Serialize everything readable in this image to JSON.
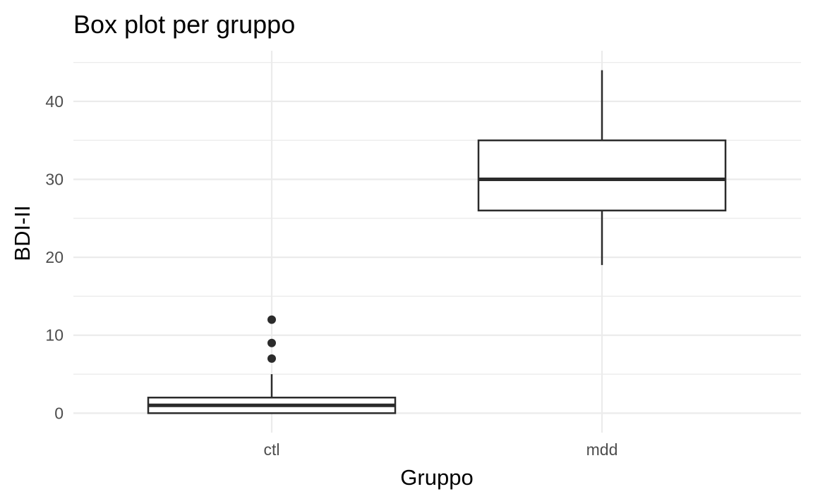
{
  "chart_data": {
    "type": "box",
    "title": "Box plot per gruppo",
    "xlabel": "Gruppo",
    "ylabel": "BDI-II",
    "categories": [
      "ctl",
      "mdd"
    ],
    "ylim": [
      -2.5,
      46.5
    ],
    "yticks": [
      0,
      10,
      20,
      30,
      40
    ],
    "ytick_labels": [
      "0",
      "10",
      "20",
      "30",
      "40"
    ],
    "grid": true,
    "legend": "none",
    "boxes": [
      {
        "category": "ctl",
        "whisker_low": 0,
        "q1": 0,
        "median": 1,
        "q3": 2,
        "whisker_high": 5,
        "outliers": [
          7,
          9,
          12
        ]
      },
      {
        "category": "mdd",
        "whisker_low": 19,
        "q1": 26,
        "median": 30,
        "q3": 35,
        "whisker_high": 44,
        "outliers": []
      }
    ],
    "colors": {
      "box_stroke": "#2b2b2b",
      "box_fill": "#ffffff",
      "grid": "#ebebeb",
      "text": "#000000",
      "tick_text": "#4d4d4d"
    }
  }
}
